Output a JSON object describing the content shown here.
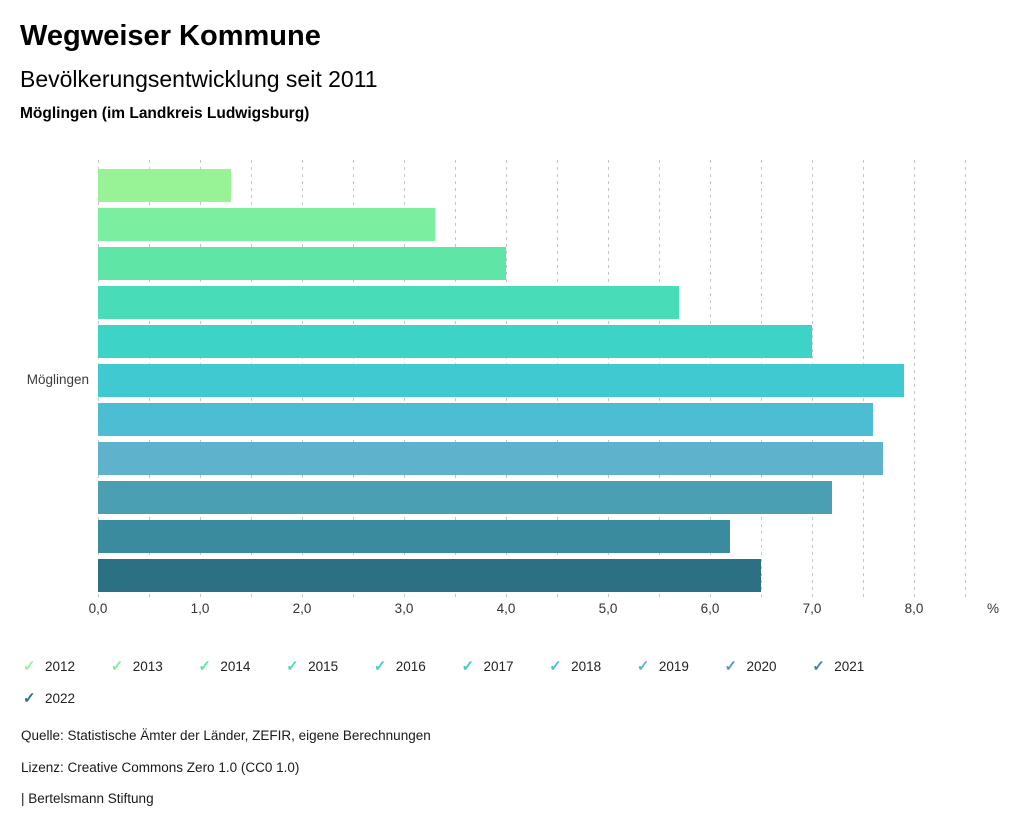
{
  "header": {
    "title": "Wegweiser Kommune",
    "subtitle": "Bevölkerungsentwicklung seit 2011",
    "location": "Möglingen (im Landkreis Ludwigsburg)"
  },
  "chart_data": {
    "type": "bar",
    "orientation": "horizontal",
    "title": "Bevölkerungsentwicklung seit 2011",
    "category_label": "Möglingen",
    "xlabel": "%",
    "xlim": [
      0,
      8.5
    ],
    "grid_step": 0.5,
    "grid": true,
    "axis_unit_label": "%",
    "x_ticks": [
      {
        "value": 0,
        "label": "0,0"
      },
      {
        "value": 1,
        "label": "1,0"
      },
      {
        "value": 2,
        "label": "2,0"
      },
      {
        "value": 3,
        "label": "3,0"
      },
      {
        "value": 4,
        "label": "4,0"
      },
      {
        "value": 5,
        "label": "5,0"
      },
      {
        "value": 6,
        "label": "6,0"
      },
      {
        "value": 7,
        "label": "7,0"
      },
      {
        "value": 8,
        "label": "8,0"
      }
    ],
    "series": [
      {
        "year": "2012",
        "value": 1.3,
        "color": "#98f396"
      },
      {
        "year": "2013",
        "value": 3.3,
        "color": "#7bee9f"
      },
      {
        "year": "2014",
        "value": 4.0,
        "color": "#5fe6a7"
      },
      {
        "year": "2015",
        "value": 5.7,
        "color": "#48ddb8"
      },
      {
        "year": "2016",
        "value": 7.0,
        "color": "#3dd4c7"
      },
      {
        "year": "2017",
        "value": 7.9,
        "color": "#41c9d1"
      },
      {
        "year": "2018",
        "value": 7.6,
        "color": "#4dbdd3"
      },
      {
        "year": "2019",
        "value": 7.7,
        "color": "#5fb2cc"
      },
      {
        "year": "2020",
        "value": 7.2,
        "color": "#4a9fb3"
      },
      {
        "year": "2021",
        "value": 6.2,
        "color": "#3a8b9e"
      },
      {
        "year": "2022",
        "value": 6.5,
        "color": "#2b7183"
      }
    ]
  },
  "legend": {
    "check_icon": "✓",
    "rows": [
      [
        "2012",
        "2013",
        "2014",
        "2015",
        "2016",
        "2017",
        "2018",
        "2019",
        "2020",
        "2021"
      ],
      [
        "2022"
      ]
    ]
  },
  "footer": {
    "source": "Quelle: Statistische Ämter der Länder, ZEFIR, eigene Berechnungen",
    "license": "Lizenz: Creative Commons Zero 1.0 (CC0 1.0)",
    "attribution": "| Bertelsmann Stiftung"
  }
}
